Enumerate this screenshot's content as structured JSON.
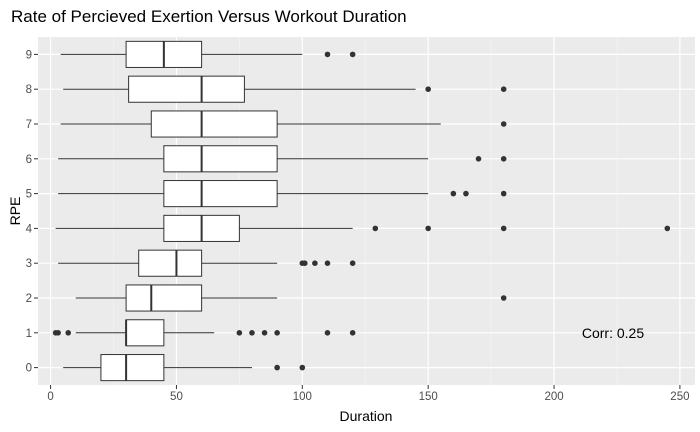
{
  "chart_data": {
    "type": "boxplot",
    "orientation": "horizontal",
    "title": "Rate of Percieved Exertion Versus Workout Duration",
    "xlabel": "Duration",
    "ylabel": "RPE",
    "xlim": [
      -5,
      256
    ],
    "x_ticks": [
      0,
      50,
      100,
      150,
      200,
      250
    ],
    "categories": [
      "0",
      "1",
      "2",
      "3",
      "4",
      "5",
      "6",
      "7",
      "8",
      "9"
    ],
    "grid": true,
    "background": "#ebebeb",
    "box_fill": "#ffffff",
    "box_stroke": "#333333",
    "annotation": "Corr: 0.25",
    "boxes": [
      {
        "rpe": "0",
        "whisker_low": 5,
        "q1": 20,
        "median": 30,
        "q3": 45,
        "whisker_high": 80,
        "outliers": [
          90,
          100
        ]
      },
      {
        "rpe": "1",
        "whisker_low": 10,
        "q1": 30,
        "median": 30,
        "q3": 45,
        "whisker_high": 65,
        "outliers": [
          2,
          3,
          7,
          75,
          80,
          85,
          90,
          110,
          120
        ]
      },
      {
        "rpe": "2",
        "whisker_low": 10,
        "q1": 30,
        "median": 40,
        "q3": 60,
        "whisker_high": 90,
        "outliers": [
          180
        ]
      },
      {
        "rpe": "3",
        "whisker_low": 3,
        "q1": 35,
        "median": 50,
        "q3": 60,
        "whisker_high": 90,
        "outliers": [
          100,
          101,
          105,
          110,
          120
        ]
      },
      {
        "rpe": "4",
        "whisker_low": 2,
        "q1": 45,
        "median": 60,
        "q3": 75,
        "whisker_high": 120,
        "outliers": [
          129,
          150,
          180,
          245
        ]
      },
      {
        "rpe": "5",
        "whisker_low": 3,
        "q1": 45,
        "median": 60,
        "q3": 90,
        "whisker_high": 150,
        "outliers": [
          160,
          165,
          180
        ]
      },
      {
        "rpe": "6",
        "whisker_low": 3,
        "q1": 45,
        "median": 60,
        "q3": 90,
        "whisker_high": 150,
        "outliers": [
          170,
          180
        ]
      },
      {
        "rpe": "7",
        "whisker_low": 4,
        "q1": 40,
        "median": 60,
        "q3": 90,
        "whisker_high": 155,
        "outliers": [
          180
        ]
      },
      {
        "rpe": "8",
        "whisker_low": 5,
        "q1": 31,
        "median": 60,
        "q3": 77,
        "whisker_high": 145,
        "outliers": [
          150,
          180
        ]
      },
      {
        "rpe": "9",
        "whisker_low": 4,
        "q1": 30,
        "median": 45,
        "q3": 60,
        "whisker_high": 100,
        "outliers": [
          110,
          120
        ]
      }
    ]
  }
}
